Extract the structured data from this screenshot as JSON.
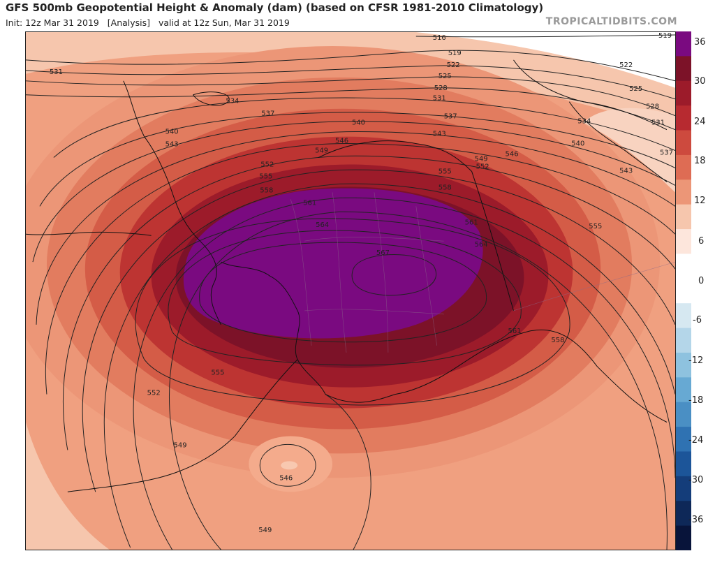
{
  "header": {
    "title": "GFS 500mb Geopotential Height & Anomaly (dam) (based on CFSR 1981-2010 Climatology)",
    "subtitle": "Init: 12z Mar 31 2019   [Analysis]   valid at 12z Sun, Mar 31 2019",
    "brand": "TROPICALTIDBITS.COM"
  },
  "colorbar": {
    "labels": [
      "36",
      "30",
      "24",
      "18",
      "12",
      "6",
      "0",
      "-6",
      "-12",
      "-18",
      "-24",
      "-30",
      "-36"
    ],
    "colors": [
      "#7a0a80",
      "#7c1228",
      "#9c1b2a",
      "#b72a30",
      "#cd4a3e",
      "#de6c54",
      "#ec9677",
      "#f6c6ad",
      "#fde6dc",
      "#ffffff",
      "#ffffff",
      "#d6e8f1",
      "#b4d6e9",
      "#8ec2df",
      "#67a9d3",
      "#4a8fc4",
      "#2f72b2",
      "#1c5599",
      "#143d7a",
      "#0e2858",
      "#08143a"
    ]
  },
  "contour_labels": {
    "lines": [
      "516",
      "519",
      "519",
      "522",
      "522",
      "525",
      "525",
      "528",
      "528",
      "531",
      "531",
      "531",
      "534",
      "534",
      "537",
      "537",
      "537",
      "540",
      "540",
      "540",
      "543",
      "543",
      "543",
      "546",
      "546",
      "549",
      "549",
      "552",
      "552",
      "555",
      "555",
      "555",
      "558",
      "558",
      "558",
      "561",
      "561",
      "561",
      "564",
      "564",
      "567",
      "549",
      "546",
      "549",
      "555",
      "552"
    ]
  }
}
